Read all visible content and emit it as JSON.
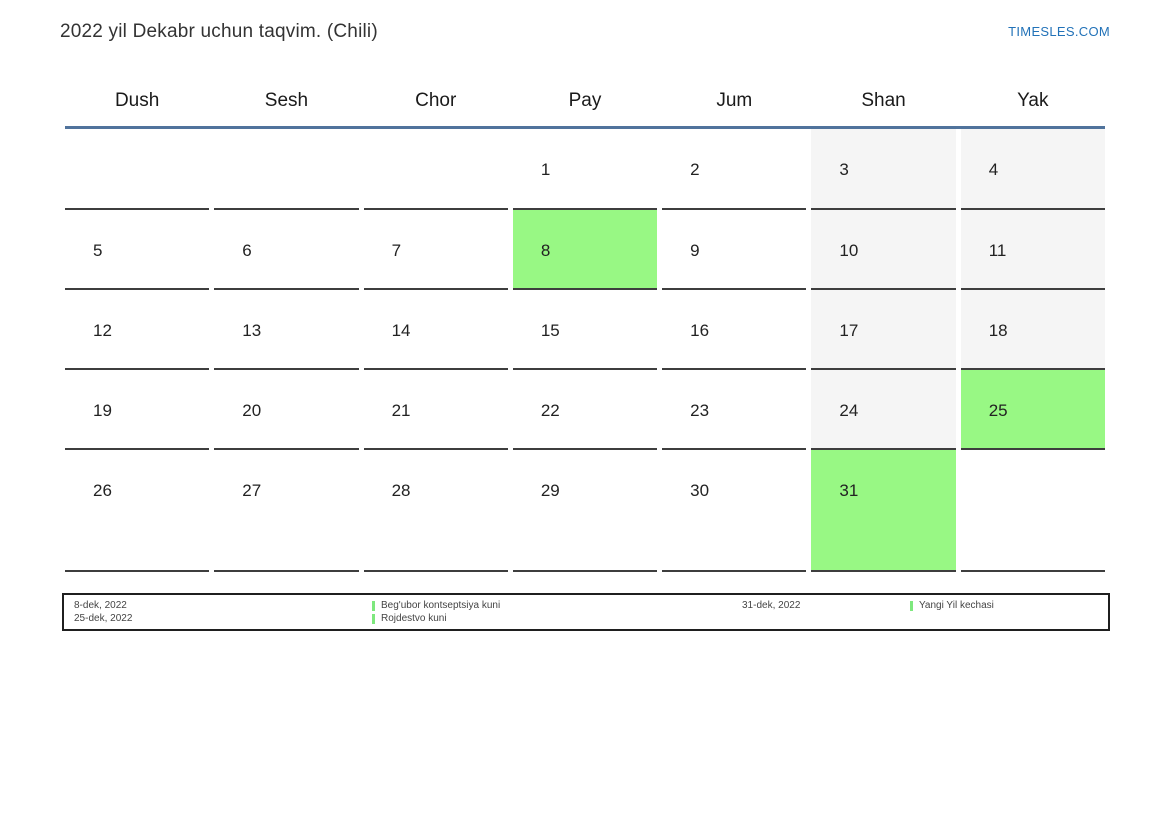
{
  "page": {
    "title": "2022 yil Dekabr uchun taqvim. (Chili)",
    "site_link": "TIMESLES.COM"
  },
  "colors": {
    "header_underline_blue": "#50739c",
    "link_blue": "#2272b8",
    "holiday_green": "#98f884",
    "weekend_gray": "#f5f5f5",
    "cell_border_dark": "#3e3e3e"
  },
  "calendar": {
    "weekday_headers": [
      "Dush",
      "Sesh",
      "Chor",
      "Pay",
      "Jum",
      "Shan",
      "Yak"
    ],
    "weeks": [
      [
        "",
        "",
        "",
        "1",
        "2",
        "3",
        "4"
      ],
      [
        "5",
        "6",
        "7",
        "8",
        "9",
        "10",
        "11"
      ],
      [
        "12",
        "13",
        "14",
        "15",
        "16",
        "17",
        "18"
      ],
      [
        "19",
        "20",
        "21",
        "22",
        "23",
        "24",
        "25"
      ],
      [
        "26",
        "27",
        "28",
        "29",
        "30",
        "31",
        ""
      ]
    ],
    "weekend_columns": [
      5,
      6
    ],
    "holiday_days": [
      "8",
      "25",
      "31"
    ]
  },
  "legend": {
    "groups": [
      {
        "rows": [
          {
            "date": "8-dek, 2022",
            "event": "Beg'ubor kontseptsiya kuni"
          },
          {
            "date": "25-dek, 2022",
            "event": "Rojdestvo kuni"
          }
        ]
      },
      {
        "rows": [
          {
            "date": "31-dek, 2022",
            "event": "Yangi Yil kechasi"
          }
        ]
      }
    ]
  }
}
